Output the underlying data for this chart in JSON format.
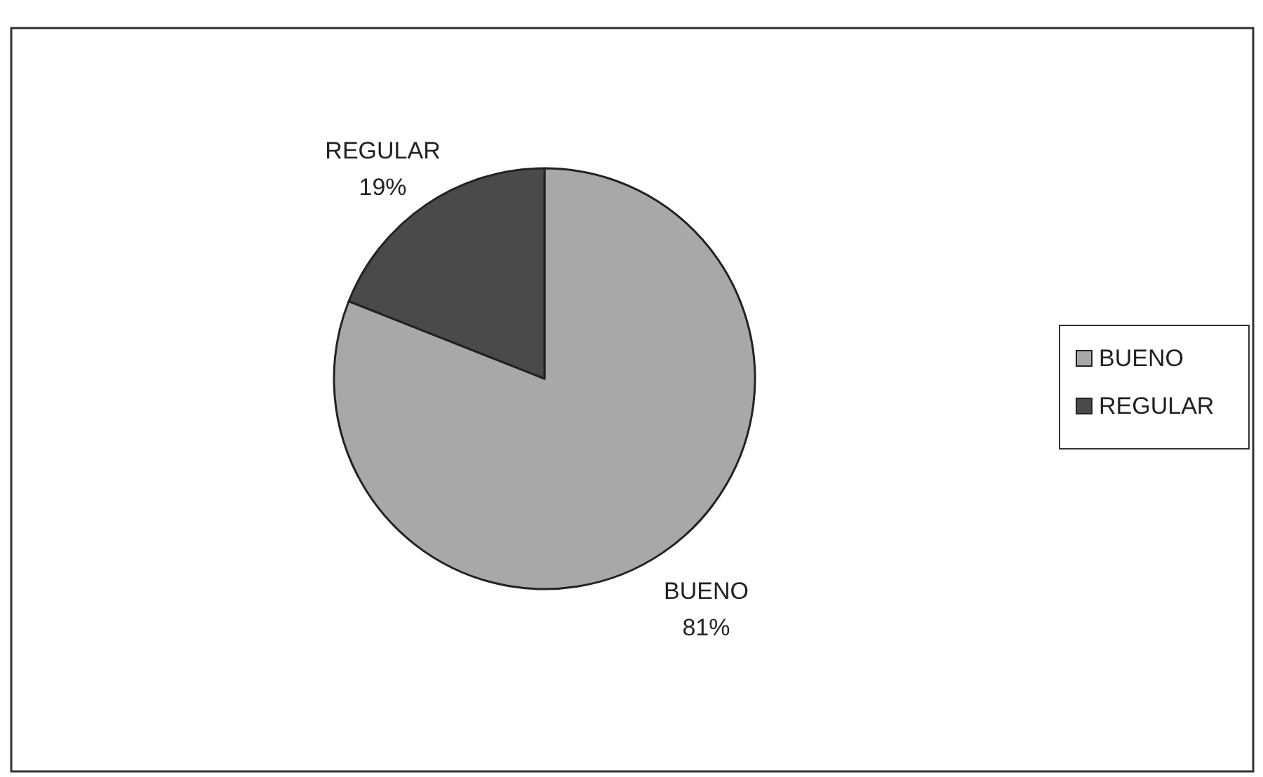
{
  "chart_data": {
    "type": "pie",
    "categories": [
      "BUENO",
      "REGULAR"
    ],
    "values": [
      81,
      19
    ],
    "colors": [
      "#a8a8a8",
      "#4a4a4a"
    ],
    "value_labels": [
      "81%",
      "19%"
    ],
    "legend": "right"
  }
}
